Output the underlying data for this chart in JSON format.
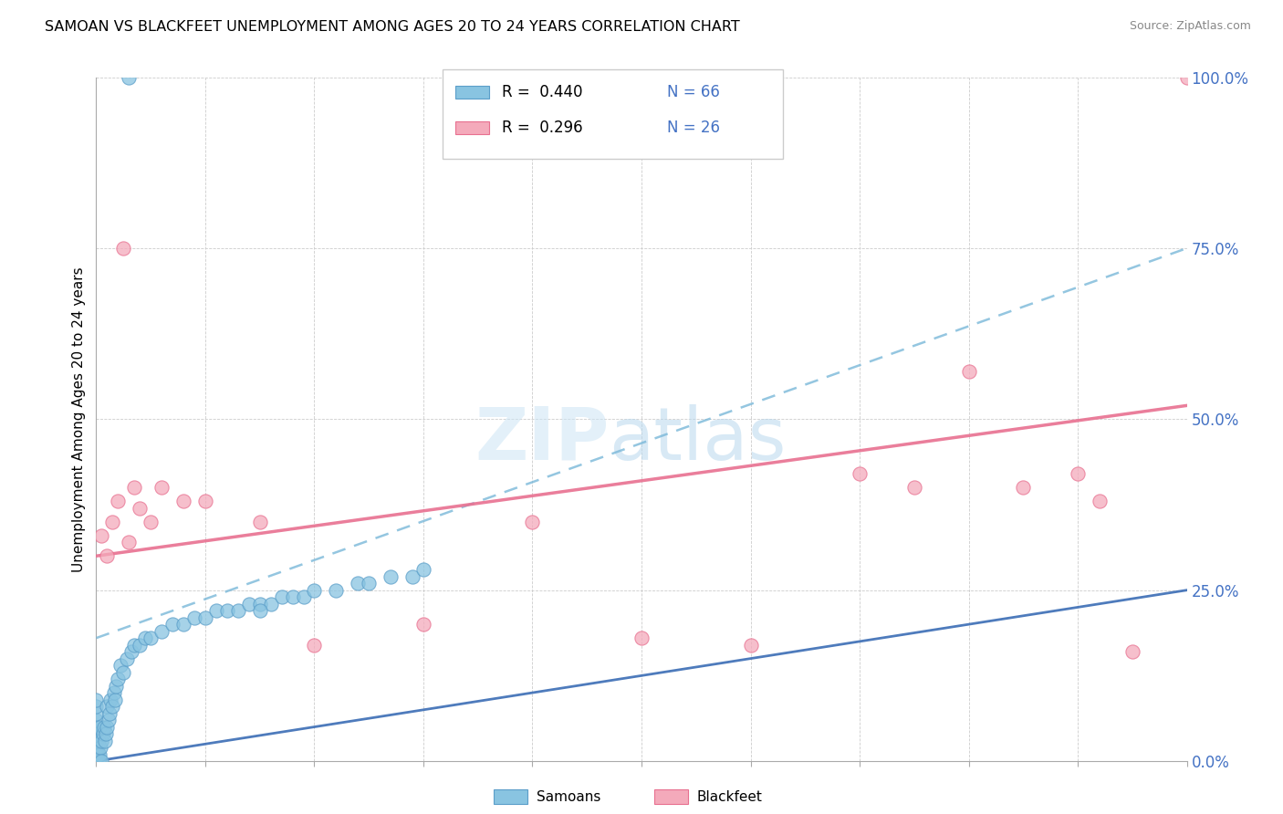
{
  "title": "SAMOAN VS BLACKFEET UNEMPLOYMENT AMONG AGES 20 TO 24 YEARS CORRELATION CHART",
  "source": "Source: ZipAtlas.com",
  "ylabel": "Unemployment Among Ages 20 to 24 years",
  "ytick_values": [
    0,
    25,
    50,
    75,
    100
  ],
  "legend_label1": "Samoans",
  "legend_label2": "Blackfeet",
  "R_samoans": "0.440",
  "N_samoans": "66",
  "R_blackfeet": "0.296",
  "N_blackfeet": "26",
  "color_samoans": "#89C4E1",
  "color_blackfeet": "#F4AABB",
  "color_samoans_edge": "#5B9EC9",
  "color_blackfeet_edge": "#E87090",
  "trendline_blue_dashed_color": "#7AB8D9",
  "trendline_blue_solid_color": "#3B6DB5",
  "trendline_pink_color": "#E87090",
  "samoans_x": [
    0.0,
    0.0,
    0.0,
    0.0,
    0.0,
    0.0,
    0.0,
    0.0,
    0.0,
    0.0,
    0.0,
    0.0,
    0.1,
    0.1,
    0.2,
    0.2,
    0.3,
    0.3,
    0.4,
    0.5,
    0.5,
    0.6,
    0.7,
    0.8,
    0.9,
    1.0,
    1.0,
    1.1,
    1.2,
    1.3,
    1.5,
    1.6,
    1.7,
    1.8,
    2.0,
    2.2,
    2.5,
    2.8,
    3.2,
    3.5,
    4.0,
    4.5,
    5.0,
    6.0,
    7.0,
    8.0,
    9.0,
    10.0,
    11.0,
    12.0,
    13.0,
    14.0,
    15.0,
    16.0,
    17.0,
    18.0,
    19.0,
    20.0,
    22.0,
    24.0,
    25.0,
    27.0,
    29.0,
    30.0,
    3.0,
    15.0
  ],
  "samoans_y": [
    0.0,
    0.0,
    0.0,
    1.0,
    2.0,
    3.0,
    4.0,
    5.0,
    6.0,
    7.0,
    8.0,
    9.0,
    1.0,
    2.0,
    0.0,
    3.0,
    1.0,
    5.0,
    2.0,
    0.0,
    3.0,
    4.0,
    5.0,
    3.0,
    4.0,
    5.0,
    8.0,
    6.0,
    7.0,
    9.0,
    8.0,
    10.0,
    9.0,
    11.0,
    12.0,
    14.0,
    13.0,
    15.0,
    16.0,
    17.0,
    17.0,
    18.0,
    18.0,
    19.0,
    20.0,
    20.0,
    21.0,
    21.0,
    22.0,
    22.0,
    22.0,
    23.0,
    23.0,
    23.0,
    24.0,
    24.0,
    24.0,
    25.0,
    25.0,
    26.0,
    26.0,
    27.0,
    27.0,
    28.0,
    100.0,
    22.0
  ],
  "blackfeet_x": [
    0.5,
    1.0,
    1.5,
    2.0,
    3.0,
    4.0,
    5.0,
    6.0,
    8.0,
    10.0,
    15.0,
    20.0,
    30.0,
    40.0,
    50.0,
    60.0,
    70.0,
    75.0,
    80.0,
    85.0,
    90.0,
    92.0,
    95.0,
    100.0,
    2.5,
    3.5
  ],
  "blackfeet_y": [
    33.0,
    30.0,
    35.0,
    38.0,
    32.0,
    37.0,
    35.0,
    40.0,
    38.0,
    38.0,
    35.0,
    17.0,
    20.0,
    35.0,
    18.0,
    17.0,
    42.0,
    40.0,
    57.0,
    40.0,
    42.0,
    38.0,
    16.0,
    100.0,
    75.0,
    40.0
  ],
  "sam_trendline": [
    0.0,
    0.0,
    100.0,
    25.0
  ],
  "sam_dashed_trendline": [
    0.0,
    18.0,
    100.0,
    75.0
  ],
  "blk_trendline": [
    0.0,
    30.0,
    100.0,
    52.0
  ],
  "xlim": [
    0,
    100
  ],
  "ylim": [
    0,
    100
  ],
  "watermark_zip": "ZIP",
  "watermark_atlas": "atlas"
}
